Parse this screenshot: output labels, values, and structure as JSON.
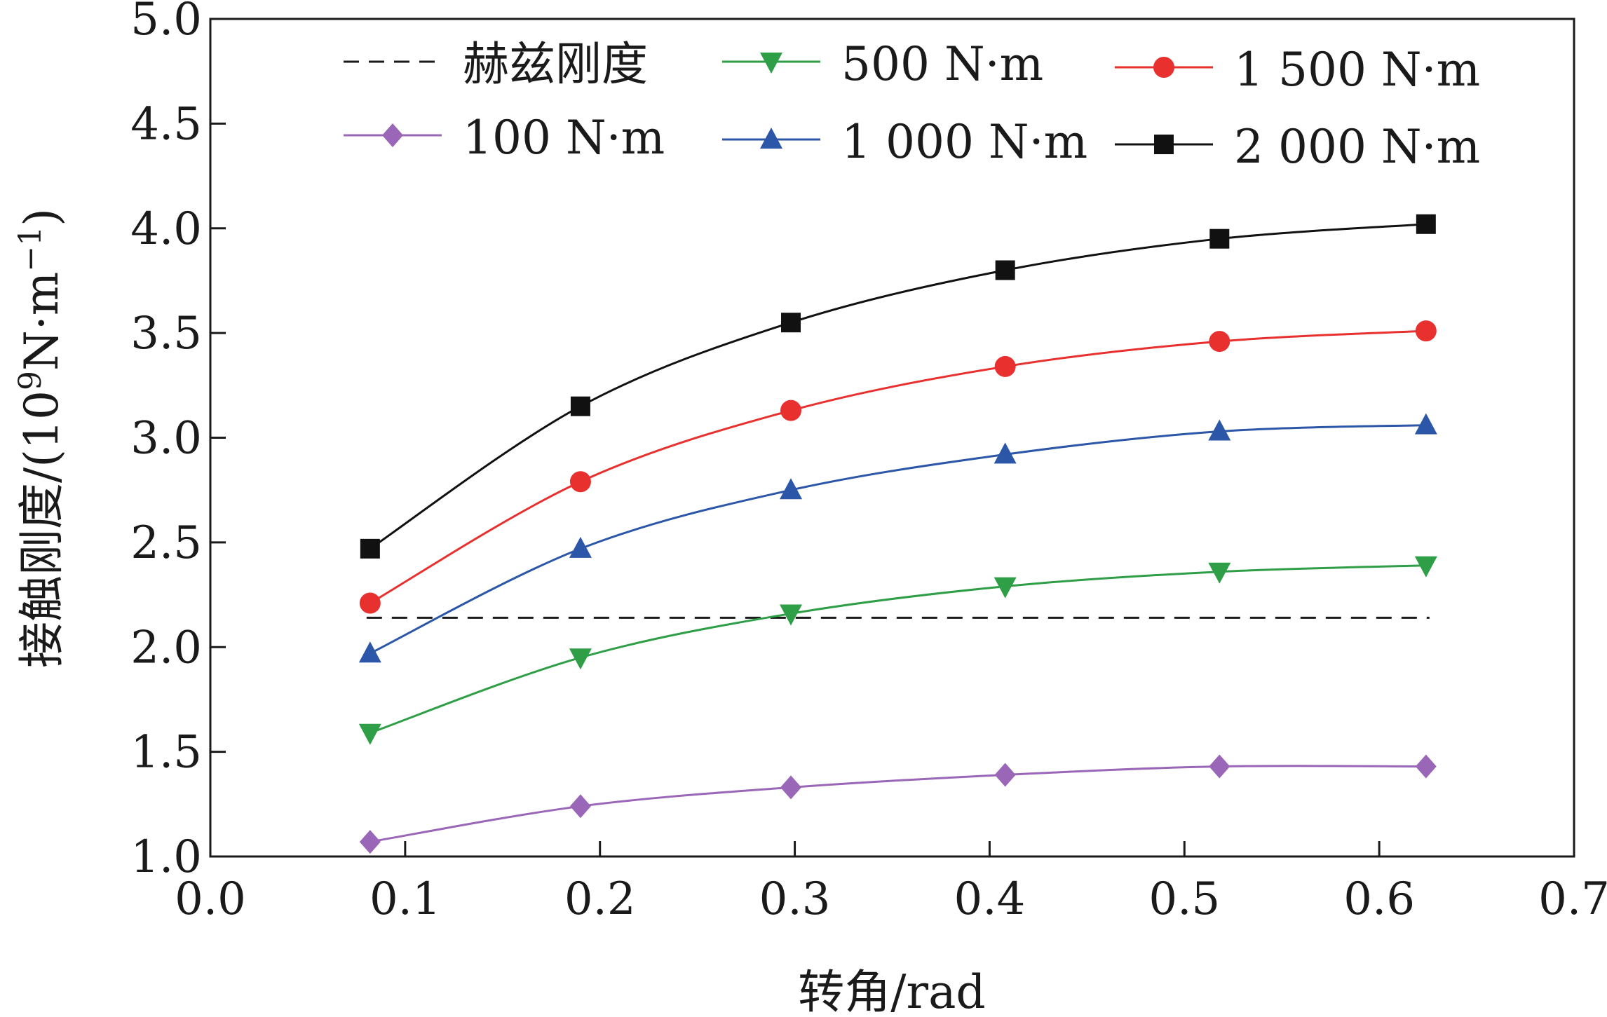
{
  "chart_data": {
    "type": "line",
    "title": "",
    "xlabel": "转角/rad",
    "ylabel": "接触刚度/(10^9 N·m^-1)",
    "ylabel_parts": [
      "接触刚度/(10",
      "9",
      "N·m",
      "−1",
      ")"
    ],
    "xlim": [
      0.0,
      0.7
    ],
    "ylim": [
      1.0,
      5.0
    ],
    "xticks": [
      "0.0",
      "0.1",
      "0.2",
      "0.3",
      "0.4",
      "0.5",
      "0.6",
      "0.7"
    ],
    "yticks": [
      "1.0",
      "1.5",
      "2.0",
      "2.5",
      "3.0",
      "3.5",
      "4.0",
      "4.5",
      "5.0"
    ],
    "x": [
      0.082,
      0.19,
      0.298,
      0.408,
      0.518,
      0.624
    ],
    "grid": false,
    "legend_position": "top",
    "series": [
      {
        "name": "赫兹刚度",
        "color": "#1a1a1a",
        "style": "dashed",
        "marker": "none",
        "values": [
          2.14,
          2.14,
          2.14,
          2.14,
          2.14,
          2.14
        ]
      },
      {
        "name": "500 N·m",
        "color": "#2e9e47",
        "style": "solid",
        "marker": "triangle-down",
        "values": [
          1.59,
          1.95,
          2.16,
          2.29,
          2.36,
          2.39
        ]
      },
      {
        "name": "1 500 N·m",
        "color": "#e8302f",
        "style": "solid",
        "marker": "circle",
        "values": [
          2.21,
          2.79,
          3.13,
          3.34,
          3.46,
          3.51
        ]
      },
      {
        "name": "100 N·m",
        "color": "#9a67b8",
        "style": "solid",
        "marker": "diamond",
        "values": [
          1.07,
          1.24,
          1.33,
          1.39,
          1.43,
          1.43
        ]
      },
      {
        "name": "1 000 N·m",
        "color": "#2c56a8",
        "style": "solid",
        "marker": "triangle-up",
        "values": [
          1.97,
          2.47,
          2.75,
          2.92,
          3.03,
          3.06
        ]
      },
      {
        "name": "2 000 N·m",
        "color": "#111111",
        "style": "solid",
        "marker": "square",
        "values": [
          2.47,
          3.15,
          3.55,
          3.8,
          3.95,
          4.02
        ]
      }
    ]
  }
}
